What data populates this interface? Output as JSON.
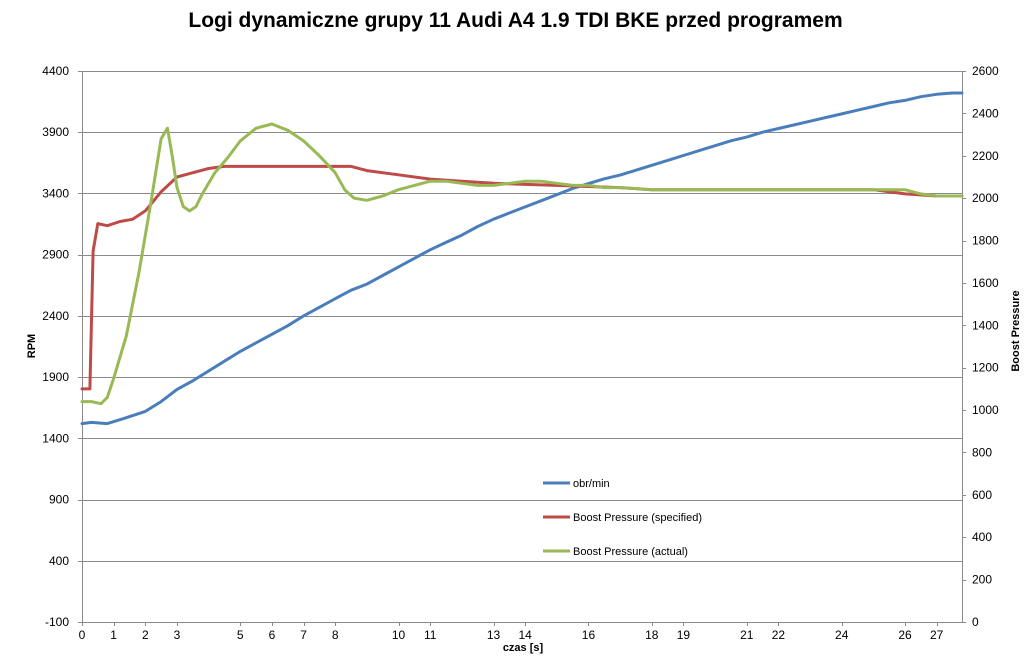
{
  "chart_data": {
    "type": "line",
    "title": "Logi dynamiczne grupy 11 Audi A4 1.9 TDI BKE przed programem",
    "xlabel": "czas [s]",
    "ylabel_left": "RPM",
    "ylabel_right": "Boost Pressure",
    "ylim_left": [
      -100,
      4400
    ],
    "ylim_right": [
      0,
      2600
    ],
    "yticks_left": [
      -100,
      400,
      900,
      1400,
      1900,
      2400,
      2900,
      3400,
      3900,
      4400
    ],
    "yticks_right": [
      0,
      200,
      400,
      600,
      800,
      1000,
      1200,
      1400,
      1600,
      1800,
      2000,
      2200,
      2400,
      2600
    ],
    "xlim": [
      0,
      27.8
    ],
    "xtick_labels": [
      {
        "x": 0,
        "label": "0"
      },
      {
        "x": 1,
        "label": "1"
      },
      {
        "x": 2,
        "label": "2"
      },
      {
        "x": 3,
        "label": "3"
      },
      {
        "x": 5,
        "label": "5"
      },
      {
        "x": 6,
        "label": "6"
      },
      {
        "x": 7,
        "label": "7"
      },
      {
        "x": 8,
        "label": "8"
      },
      {
        "x": 10,
        "label": "10"
      },
      {
        "x": 11,
        "label": "11"
      },
      {
        "x": 13,
        "label": "13"
      },
      {
        "x": 14,
        "label": "14"
      },
      {
        "x": 16,
        "label": "16"
      },
      {
        "x": 18,
        "label": "18"
      },
      {
        "x": 19,
        "label": "19"
      },
      {
        "x": 21,
        "label": "21"
      },
      {
        "x": 22,
        "label": "22"
      },
      {
        "x": 24,
        "label": "24"
      },
      {
        "x": 26,
        "label": "26"
      },
      {
        "x": 27,
        "label": "27"
      }
    ],
    "grid": "horizontal",
    "legend_position": "inside-bottom-center",
    "series": [
      {
        "name": "obr/min",
        "axis": "left",
        "color": "#4a7ebb",
        "x": [
          0,
          0.3,
          0.8,
          1.3,
          2.0,
          2.5,
          3.0,
          3.5,
          4.0,
          4.5,
          5.0,
          5.5,
          6.0,
          6.5,
          7.0,
          7.5,
          8.0,
          8.5,
          9.0,
          9.5,
          10.0,
          10.5,
          11.0,
          11.5,
          12.0,
          12.5,
          13.0,
          13.5,
          14.0,
          14.5,
          15.0,
          15.5,
          16.0,
          16.5,
          17.0,
          17.5,
          18.0,
          18.5,
          19.0,
          19.5,
          20.0,
          20.5,
          21.0,
          21.5,
          22.0,
          22.5,
          23.0,
          23.5,
          24.0,
          24.5,
          25.0,
          25.5,
          26.0,
          26.5,
          27.0,
          27.5,
          27.8
        ],
        "values": [
          1520,
          1530,
          1520,
          1560,
          1620,
          1700,
          1800,
          1870,
          1950,
          2030,
          2110,
          2180,
          2250,
          2320,
          2400,
          2470,
          2540,
          2610,
          2660,
          2730,
          2800,
          2870,
          2940,
          3000,
          3060,
          3130,
          3190,
          3240,
          3290,
          3340,
          3390,
          3440,
          3480,
          3520,
          3550,
          3590,
          3630,
          3670,
          3710,
          3750,
          3790,
          3830,
          3860,
          3900,
          3930,
          3960,
          3990,
          4020,
          4050,
          4080,
          4110,
          4140,
          4160,
          4190,
          4210,
          4220,
          4220
        ]
      },
      {
        "name": "Boost Pressure (specified)",
        "axis": "right",
        "color": "#be4b48",
        "x": [
          0,
          0.25,
          0.35,
          0.5,
          0.8,
          1.2,
          1.6,
          2.0,
          2.5,
          3.0,
          3.5,
          4.0,
          4.5,
          5.0,
          6.0,
          7.0,
          8.0,
          8.5,
          9.0,
          10.0,
          11.0,
          12.0,
          13.0,
          14.0,
          15.0,
          16.0,
          17.0,
          17.5,
          18.0,
          20.0,
          22.0,
          24.0,
          25.0,
          26.0,
          27.0,
          27.8
        ],
        "values": [
          1100,
          1100,
          1750,
          1880,
          1870,
          1890,
          1900,
          1940,
          2030,
          2100,
          2120,
          2140,
          2150,
          2150,
          2150,
          2150,
          2150,
          2150,
          2130,
          2110,
          2090,
          2080,
          2070,
          2065,
          2060,
          2055,
          2050,
          2045,
          2040,
          2040,
          2040,
          2040,
          2040,
          2020,
          2010,
          2010
        ]
      },
      {
        "name": "Boost Pressure (actual)",
        "axis": "right",
        "color": "#98b954",
        "x": [
          0,
          0.3,
          0.6,
          0.8,
          1.0,
          1.4,
          1.8,
          2.2,
          2.5,
          2.7,
          2.85,
          3.0,
          3.2,
          3.4,
          3.6,
          3.8,
          4.2,
          4.6,
          5.0,
          5.5,
          6.0,
          6.5,
          7.0,
          7.5,
          8.0,
          8.3,
          8.6,
          9.0,
          9.5,
          10.0,
          10.5,
          11.0,
          11.5,
          12.0,
          12.5,
          13.0,
          13.5,
          14.0,
          14.5,
          15.0,
          15.5,
          16.0,
          16.5,
          17.0,
          17.5,
          18.0,
          20.0,
          22.0,
          24.0,
          25.0,
          26.0,
          26.5,
          27.0,
          27.8
        ],
        "values": [
          1040,
          1040,
          1030,
          1060,
          1150,
          1350,
          1650,
          2000,
          2280,
          2330,
          2200,
          2050,
          1960,
          1940,
          1960,
          2020,
          2120,
          2190,
          2270,
          2330,
          2350,
          2320,
          2270,
          2200,
          2120,
          2040,
          2000,
          1990,
          2010,
          2040,
          2060,
          2080,
          2080,
          2070,
          2060,
          2060,
          2070,
          2080,
          2080,
          2070,
          2060,
          2060,
          2050,
          2050,
          2045,
          2040,
          2040,
          2040,
          2040,
          2040,
          2040,
          2020,
          2010,
          2010
        ]
      }
    ]
  }
}
